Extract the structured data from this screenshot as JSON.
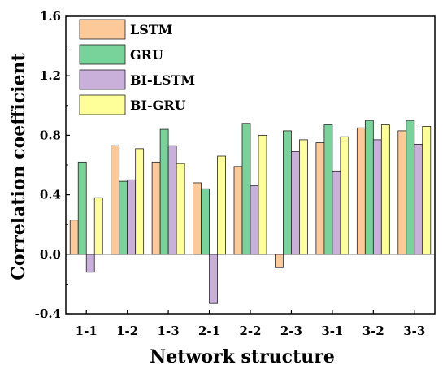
{
  "chart_data": {
    "type": "bar",
    "title": "",
    "xlabel": "Network structure",
    "ylabel": "Correlation coefficient",
    "ylim": [
      -0.4,
      1.6
    ],
    "yticks": [
      -0.4,
      0.0,
      0.4,
      0.8,
      1.2,
      1.6
    ],
    "ytick_labels": [
      "-0.4",
      "0.0",
      "0.4",
      "0.8",
      "1.2",
      "1.6"
    ],
    "categories": [
      "1-1",
      "1-2",
      "1-3",
      "2-1",
      "2-2",
      "2-3",
      "3-1",
      "3-2",
      "3-3"
    ],
    "grid": false,
    "legend_position": "top-left",
    "series": [
      {
        "name": "LSTM",
        "color": "#FDC998",
        "values": [
          0.23,
          0.73,
          0.62,
          0.48,
          0.59,
          -0.09,
          0.75,
          0.85,
          0.83
        ]
      },
      {
        "name": "GRU",
        "color": "#78D39A",
        "values": [
          0.62,
          0.49,
          0.84,
          0.44,
          0.88,
          0.83,
          0.87,
          0.9,
          0.9
        ]
      },
      {
        "name": "BI-LSTM",
        "color": "#C8B0DA",
        "values": [
          -0.12,
          0.5,
          0.73,
          -0.33,
          0.46,
          0.69,
          0.56,
          0.77,
          0.74
        ]
      },
      {
        "name": "BI-GRU",
        "color": "#FFFF99",
        "values": [
          0.38,
          0.71,
          0.61,
          0.66,
          0.8,
          0.77,
          0.79,
          0.87,
          0.86
        ]
      }
    ]
  }
}
